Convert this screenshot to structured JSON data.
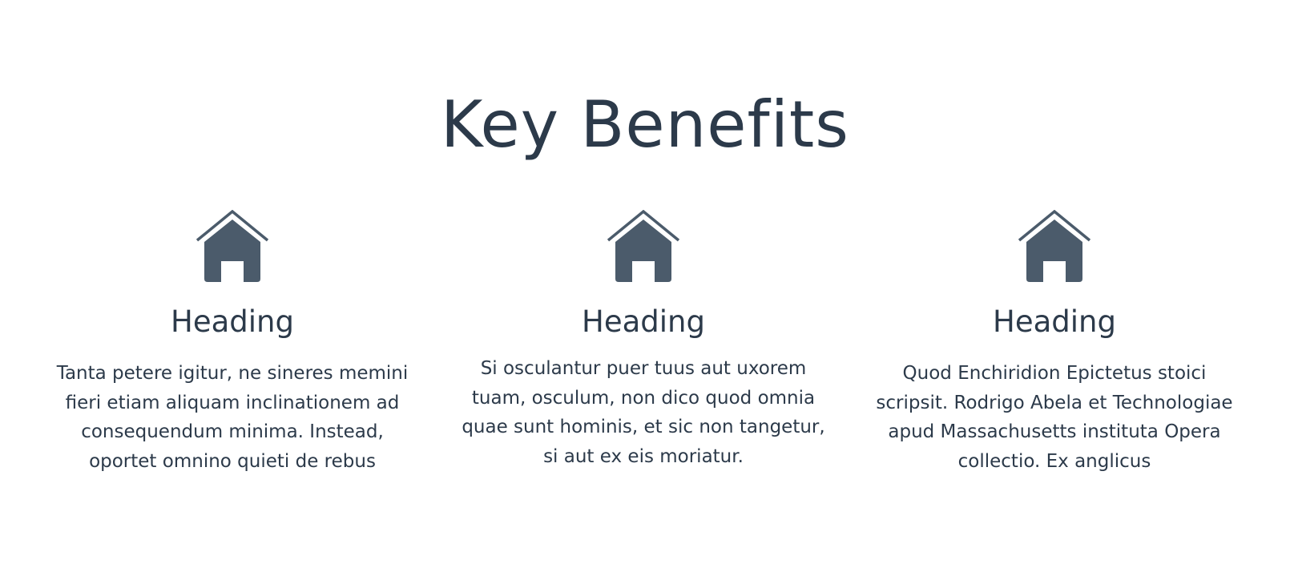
{
  "section": {
    "title": "Key Benefits",
    "items": [
      {
        "icon": "home-icon",
        "heading": "Heading",
        "text": "Tanta petere igitur, ne sineres memini fieri etiam aliquam inclinationem ad consequendum minima. Instead, oportet omnino quieti de rebus"
      },
      {
        "icon": "home-icon",
        "heading": "Heading",
        "text": "Si osculantur puer tuus aut uxorem tuam, osculum, non dico quod omnia quae sunt hominis, et sic non tangetur, si aut ex eis moriatur."
      },
      {
        "icon": "home-icon",
        "heading": "Heading",
        "text": "Quod Enchiridion Epictetus stoici scripsit. Rodrigo Abela et Technologiae apud Massachusetts instituta Opera collectio. Ex anglicus"
      }
    ]
  },
  "colors": {
    "text": "#2c3a4a",
    "icon": "#4b5b6b",
    "background": "#ffffff"
  }
}
